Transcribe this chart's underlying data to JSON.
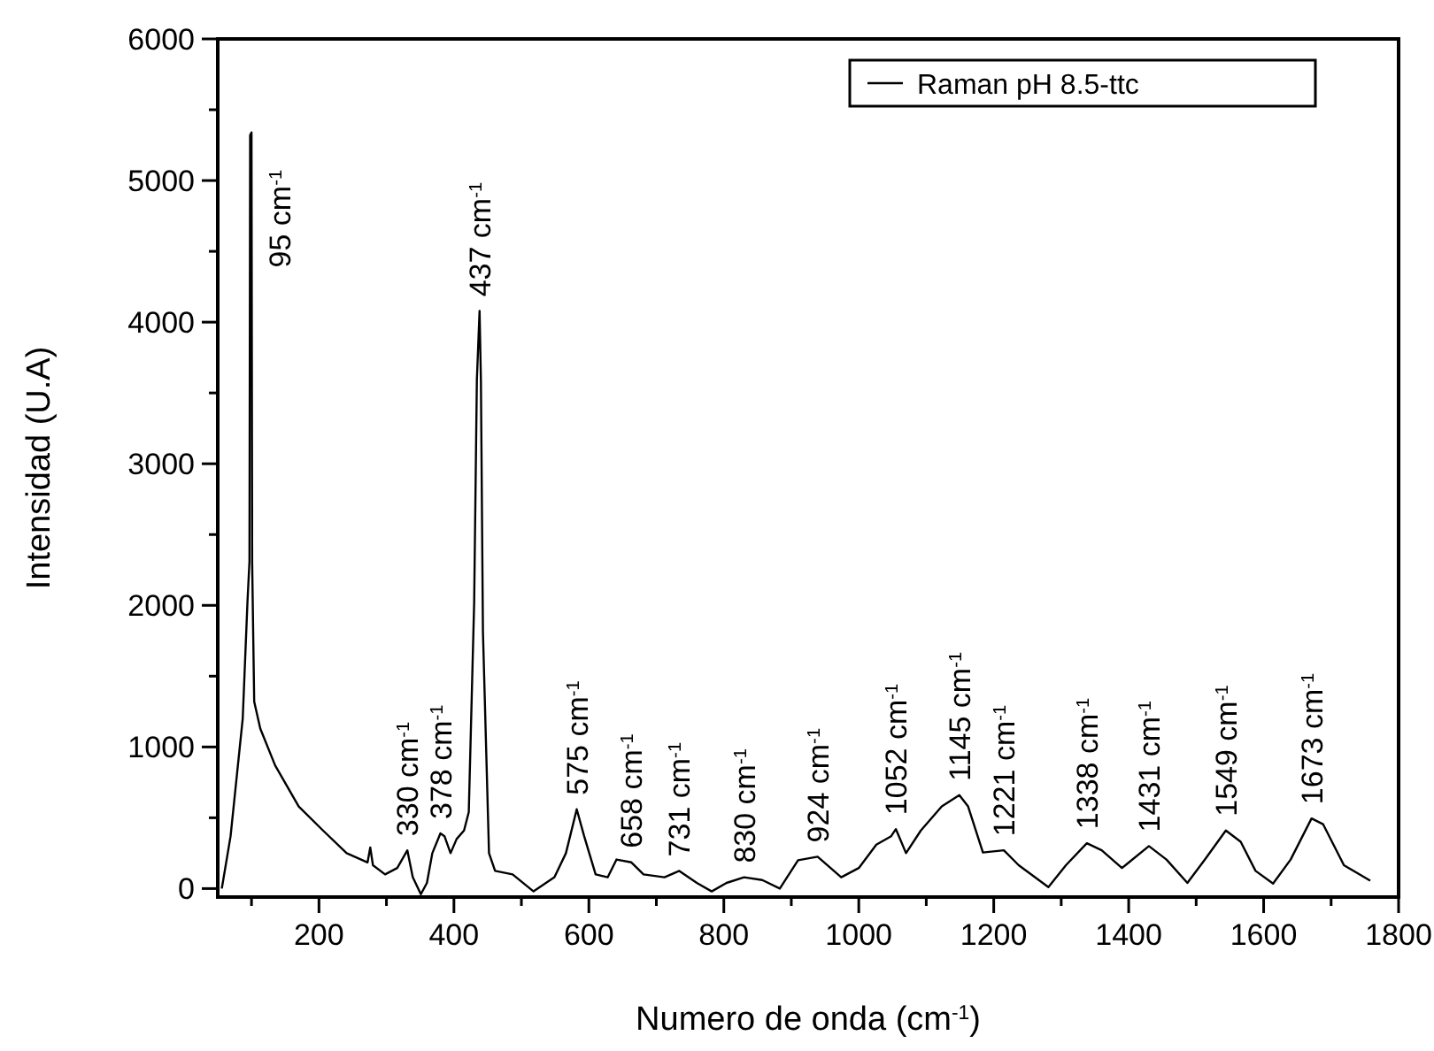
{
  "chart_data": {
    "type": "line",
    "xlabel": "Numero de onda (cm$^{-1}$)",
    "ylabel": "Intensidad (U.A)",
    "legend": "top right",
    "marker": "none",
    "line_style": "solid",
    "grid": false,
    "xlim": [
      50,
      1800
    ],
    "ylim": [
      -60,
      6000
    ],
    "xticks": [
      {
        "value": 100,
        "label": null
      },
      200,
      {
        "value": 300,
        "label": null
      },
      400,
      {
        "value": 500,
        "label": null
      },
      600,
      {
        "value": 700,
        "label": null
      },
      800,
      {
        "value": 900,
        "label": null
      },
      1000,
      {
        "value": 1100,
        "label": null
      },
      1200,
      {
        "value": 1300,
        "label": null
      },
      1400,
      {
        "value": 1500,
        "label": null
      },
      1600,
      {
        "value": 1700,
        "label": null
      },
      1800
    ],
    "yticks": [
      0,
      {
        "value": 500,
        "label": null
      },
      1000,
      {
        "value": 1500,
        "label": null
      },
      2000,
      {
        "value": 2500,
        "label": null
      },
      3000,
      {
        "value": 3500,
        "label": null
      },
      4000,
      {
        "value": 4500,
        "label": null
      },
      5000,
      {
        "value": 5500,
        "label": null
      },
      6000
    ],
    "series": [
      {
        "name": "Raman pH 8.5-ttc",
        "color": "#000000",
        "x": [
          56,
          69,
          87,
          94,
          97,
          98,
          100,
          101,
          104,
          113,
          135,
          170,
          206,
          241,
          272,
          276,
          280,
          298,
          316,
          331,
          339,
          351,
          360,
          368,
          380,
          386,
          395,
          404,
          415,
          422,
          430,
          434,
          438,
          440,
          443,
          452,
          461,
          487,
          518,
          549,
          566,
          582,
          593,
          610,
          628,
          641,
          663,
          681,
          712,
          734,
          760,
          782,
          804,
          830,
          857,
          883,
          910,
          939,
          974,
          1000,
          1026,
          1048,
          1055,
          1070,
          1092,
          1123,
          1149,
          1162,
          1184,
          1215,
          1237,
          1281,
          1307,
          1338,
          1360,
          1390,
          1430,
          1456,
          1487,
          1513,
          1544,
          1566,
          1588,
          1614,
          1640,
          1671,
          1688,
          1719,
          1758
        ],
        "values": [
          0,
          370,
          1200,
          2020,
          2310,
          5320,
          5340,
          2300,
          1320,
          1130,
          870,
          580,
          410,
          250,
          185,
          290,
          165,
          100,
          145,
          270,
          80,
          -40,
          40,
          250,
          390,
          370,
          250,
          350,
          410,
          540,
          2020,
          3590,
          4080,
          3590,
          1815,
          250,
          125,
          100,
          -20,
          80,
          250,
          560,
          370,
          100,
          80,
          205,
          185,
          100,
          80,
          125,
          40,
          -20,
          40,
          80,
          60,
          0,
          200,
          225,
          80,
          145,
          310,
          370,
          420,
          250,
          410,
          580,
          660,
          580,
          255,
          270,
          165,
          10,
          165,
          320,
          270,
          145,
          300,
          205,
          40,
          205,
          410,
          330,
          125,
          35,
          205,
          495,
          455,
          165,
          55
        ]
      }
    ],
    "annotations": [
      {
        "text": "95 cm$^{-1}$",
        "x": 100,
        "y": 5340
      },
      {
        "text": "330 cm$^{-1}$",
        "x": 331,
        "y": 270
      },
      {
        "text": "378 cm$^{-1}$",
        "x": 380,
        "y": 390
      },
      {
        "text": "437 cm$^{-1}$",
        "x": 438,
        "y": 4080
      },
      {
        "text": "575 cm$^{-1}$",
        "x": 582,
        "y": 560
      },
      {
        "text": "658 cm$^{-1}$",
        "x": 663,
        "y": 185
      },
      {
        "text": "731 cm$^{-1}$",
        "x": 734,
        "y": 125
      },
      {
        "text": "830 cm$^{-1}$",
        "x": 830,
        "y": 80
      },
      {
        "text": "924 cm$^{-1}$",
        "x": 939,
        "y": 225
      },
      {
        "text": "1052 cm$^{-1}$",
        "x": 1055,
        "y": 420
      },
      {
        "text": "1145 cm$^{-1}$",
        "x": 1149,
        "y": 660
      },
      {
        "text": "1221 cm$^{-1}$",
        "x": 1215,
        "y": 270
      },
      {
        "text": "1338 cm$^{-1}$",
        "x": 1338,
        "y": 320
      },
      {
        "text": "1431 cm$^{-1}$",
        "x": 1430,
        "y": 300
      },
      {
        "text": "1549 cm$^{-1}$",
        "x": 1544,
        "y": 410
      },
      {
        "text": "1673 cm$^{-1}$",
        "x": 1671,
        "y": 495
      }
    ]
  }
}
